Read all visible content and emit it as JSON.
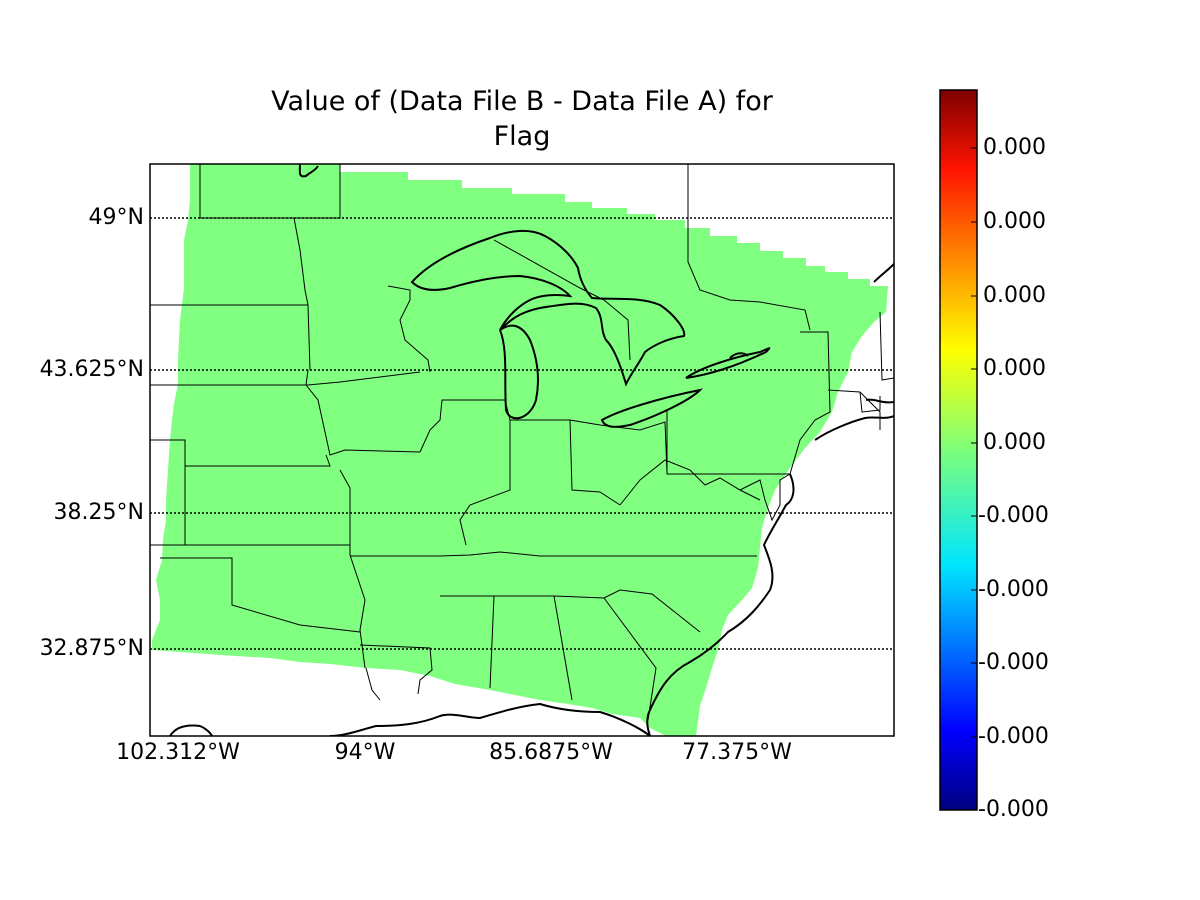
{
  "title": {
    "line1": "Value of (Data File B - Data File A) for",
    "line2": "Flag"
  },
  "map": {
    "fill_color": "#80ff80",
    "latitude_labels": [
      "49°N",
      "43.625°N",
      "38.25°N",
      "32.875°N"
    ],
    "longitude_labels": [
      "102.312°W",
      "94°W",
      "85.6875°W",
      "77.375°W"
    ],
    "gridlines": "dotted"
  },
  "colorbar": {
    "colormap": "jet",
    "tick_labels": [
      "0.000",
      "0.000",
      "0.000",
      "0.000",
      "0.000",
      "-0.000",
      "-0.000",
      "-0.000",
      "-0.000",
      "-0.000"
    ]
  }
}
